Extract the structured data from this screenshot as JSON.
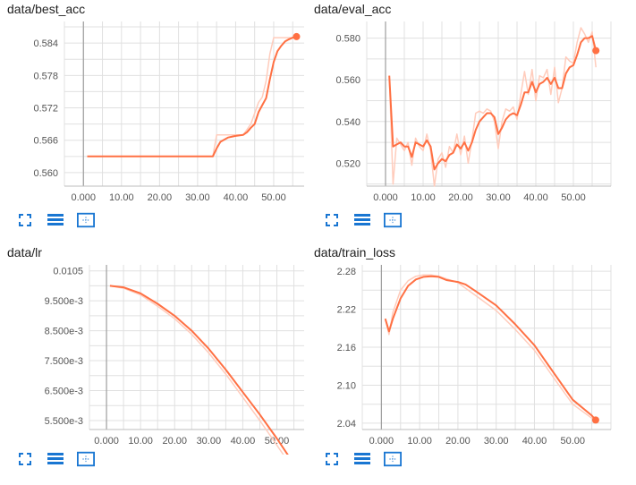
{
  "icons": {
    "expand": "fullscreen-icon",
    "data_table": "data-table-icon",
    "fit_domain": "fit-domain-icon"
  },
  "colors": {
    "series": "#ff7043",
    "series_raw": "#ffccbc",
    "grid": "#e0e0e0",
    "axis_origin": "#9e9e9e",
    "icon_blue": "#1976d2"
  },
  "chart_data": [
    {
      "type": "line",
      "title": "data/best_acc",
      "xlim": [
        -5,
        58
      ],
      "ylim": [
        0.5575,
        0.588
      ],
      "x_ticks": [
        0,
        10,
        20,
        30,
        40,
        50
      ],
      "x_tick_labels": [
        "0.000",
        "10.00",
        "20.00",
        "30.00",
        "40.00",
        "50.00"
      ],
      "y_ticks": [
        0.56,
        0.566,
        0.572,
        0.578,
        0.584
      ],
      "y_tick_labels": [
        "0.560",
        "0.566",
        "0.572",
        "0.578",
        "0.584"
      ],
      "x": [
        1,
        5,
        10,
        15,
        20,
        25,
        30,
        34,
        35,
        36,
        38,
        40,
        42,
        43,
        44,
        45,
        46,
        47,
        48,
        49,
        50,
        51,
        52,
        53,
        54,
        55,
        56
      ],
      "smoothed": [
        0.563,
        0.563,
        0.563,
        0.563,
        0.563,
        0.563,
        0.563,
        0.563,
        0.5645,
        0.5657,
        0.5665,
        0.5668,
        0.567,
        0.5675,
        0.5683,
        0.569,
        0.5712,
        0.5725,
        0.5738,
        0.5773,
        0.5805,
        0.5825,
        0.5835,
        0.5843,
        0.5847,
        0.585,
        0.5852
      ],
      "raw": [
        0.563,
        0.563,
        0.563,
        0.563,
        0.563,
        0.563,
        0.563,
        0.563,
        0.567,
        0.567,
        0.567,
        0.567,
        0.567,
        0.568,
        0.569,
        0.571,
        0.573,
        0.574,
        0.577,
        0.582,
        0.585,
        0.585,
        0.585,
        0.585,
        0.585,
        0.585,
        0.585
      ]
    },
    {
      "type": "line",
      "title": "data/eval_acc",
      "xlim": [
        -5,
        60
      ],
      "ylim": [
        0.509,
        0.588
      ],
      "x_ticks": [
        0,
        10,
        20,
        30,
        40,
        50
      ],
      "x_tick_labels": [
        "0.000",
        "10.00",
        "20.00",
        "30.00",
        "40.00",
        "50.00"
      ],
      "y_ticks": [
        0.52,
        0.54,
        0.56,
        0.58
      ],
      "y_tick_labels": [
        "0.520",
        "0.540",
        "0.560",
        "0.580"
      ],
      "x": [
        1,
        2,
        3,
        4,
        5,
        6,
        7,
        8,
        9,
        10,
        11,
        12,
        13,
        14,
        15,
        16,
        17,
        18,
        19,
        20,
        21,
        22,
        23,
        24,
        25,
        26,
        27,
        28,
        29,
        30,
        31,
        32,
        33,
        34,
        35,
        36,
        37,
        38,
        39,
        40,
        41,
        42,
        43,
        44,
        45,
        46,
        47,
        48,
        49,
        50,
        51,
        52,
        53,
        54,
        55,
        56
      ],
      "smoothed": [
        0.562,
        0.528,
        0.529,
        0.53,
        0.528,
        0.528,
        0.523,
        0.53,
        0.529,
        0.528,
        0.531,
        0.528,
        0.517,
        0.52,
        0.522,
        0.521,
        0.524,
        0.525,
        0.529,
        0.527,
        0.53,
        0.526,
        0.53,
        0.536,
        0.54,
        0.542,
        0.544,
        0.544,
        0.542,
        0.534,
        0.537,
        0.541,
        0.543,
        0.544,
        0.543,
        0.548,
        0.554,
        0.554,
        0.559,
        0.554,
        0.558,
        0.559,
        0.561,
        0.558,
        0.561,
        0.556,
        0.556,
        0.563,
        0.566,
        0.567,
        0.572,
        0.578,
        0.58,
        0.58,
        0.581,
        0.574
      ],
      "raw": [
        0.562,
        0.51,
        0.532,
        0.529,
        0.526,
        0.53,
        0.519,
        0.532,
        0.528,
        0.526,
        0.534,
        0.526,
        0.509,
        0.522,
        0.525,
        0.518,
        0.528,
        0.525,
        0.534,
        0.524,
        0.533,
        0.52,
        0.531,
        0.544,
        0.545,
        0.544,
        0.546,
        0.545,
        0.54,
        0.527,
        0.54,
        0.546,
        0.545,
        0.547,
        0.541,
        0.553,
        0.564,
        0.553,
        0.565,
        0.55,
        0.562,
        0.561,
        0.565,
        0.553,
        0.566,
        0.549,
        0.556,
        0.571,
        0.569,
        0.568,
        0.578,
        0.585,
        0.582,
        0.578,
        0.583,
        0.566
      ]
    },
    {
      "type": "line",
      "title": "data/lr",
      "xlim": [
        -5,
        58
      ],
      "ylim": [
        0.0052,
        0.0107
      ],
      "x_ticks": [
        0,
        10,
        20,
        30,
        40,
        50
      ],
      "x_tick_labels": [
        "0.000",
        "10.00",
        "20.00",
        "30.00",
        "40.00",
        "50.00"
      ],
      "y_ticks": [
        0.0055,
        0.0065,
        0.0075,
        0.0085,
        0.0095,
        0.0105
      ],
      "y_tick_labels": [
        "5.500e-3",
        "6.500e-3",
        "7.500e-3",
        "8.500e-3",
        "9.500e-3",
        "0.0105"
      ],
      "x": [
        1,
        5,
        10,
        15,
        20,
        25,
        30,
        35,
        40,
        45,
        50,
        55,
        56
      ],
      "smoothed": [
        0.01,
        0.00995,
        0.00975,
        0.0094,
        0.009,
        0.0085,
        0.0079,
        0.0072,
        0.00645,
        0.0057,
        0.0049,
        0.00405,
        0.0039
      ],
      "raw": [
        0.01,
        0.00992,
        0.0097,
        0.00932,
        0.0089,
        0.00838,
        0.00776,
        0.00705,
        0.00628,
        0.0055,
        0.00468,
        0.00384,
        0.0038
      ]
    },
    {
      "type": "line",
      "title": "data/train_loss",
      "xlim": [
        -5,
        60
      ],
      "ylim": [
        2.03,
        2.29
      ],
      "x_ticks": [
        0,
        10,
        20,
        30,
        40,
        50
      ],
      "x_tick_labels": [
        "0.000",
        "10.00",
        "20.00",
        "30.00",
        "40.00",
        "50.00"
      ],
      "y_ticks": [
        2.04,
        2.1,
        2.16,
        2.22,
        2.28
      ],
      "y_tick_labels": [
        "2.04",
        "2.10",
        "2.16",
        "2.22",
        "2.28"
      ],
      "x": [
        1,
        2,
        3,
        5,
        7,
        9,
        11,
        13,
        15,
        17,
        20,
        22,
        25,
        30,
        35,
        40,
        45,
        50,
        55,
        56
      ],
      "smoothed": [
        2.205,
        2.185,
        2.205,
        2.237,
        2.257,
        2.267,
        2.271,
        2.272,
        2.271,
        2.266,
        2.263,
        2.259,
        2.247,
        2.226,
        2.196,
        2.163,
        2.12,
        2.077,
        2.052,
        2.045
      ],
      "raw": [
        2.205,
        2.18,
        2.215,
        2.25,
        2.265,
        2.272,
        2.274,
        2.274,
        2.272,
        2.268,
        2.262,
        2.253,
        2.24,
        2.218,
        2.188,
        2.155,
        2.112,
        2.07,
        2.048,
        2.045
      ]
    }
  ]
}
